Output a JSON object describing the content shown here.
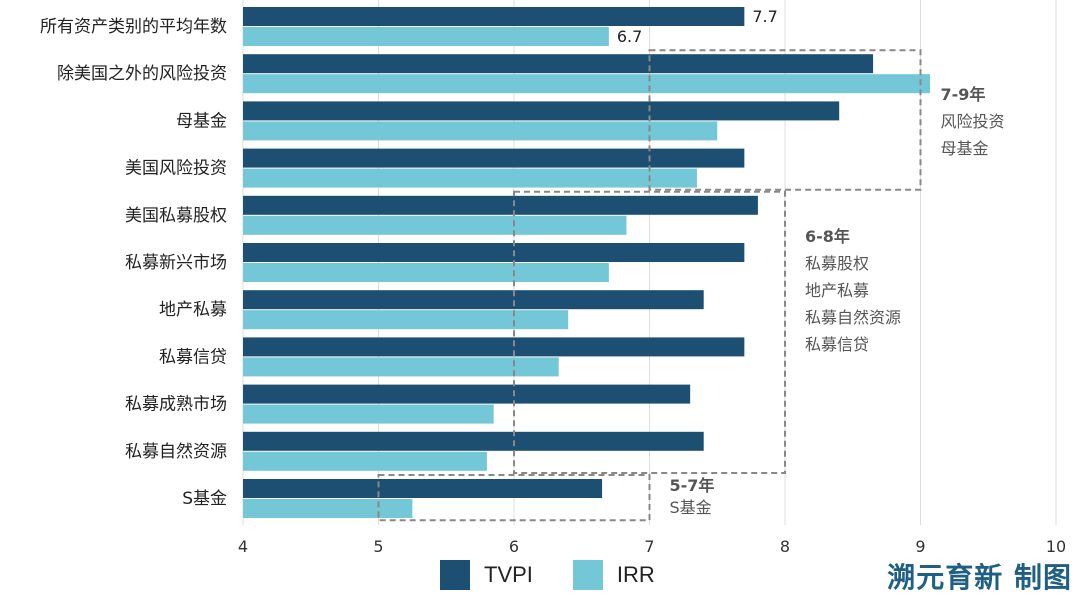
{
  "chart_data": {
    "type": "bar",
    "orientation": "horizontal",
    "categories": [
      "所有资产类别的平均年数",
      "除美国之外的风险投资",
      "母基金",
      "美国风险投资",
      "美国私募股权",
      "私募新兴市场",
      "地产私募",
      "私募信贷",
      "私募成熟市场",
      "私募自然资源",
      "S基金"
    ],
    "series": [
      {
        "name": "TVPI",
        "color": "#1d4f73",
        "values": [
          7.7,
          8.65,
          8.4,
          7.7,
          7.8,
          7.7,
          7.4,
          7.7,
          7.3,
          7.4,
          6.65
        ]
      },
      {
        "name": "IRR",
        "color": "#73c7d6",
        "values": [
          6.7,
          9.07,
          7.5,
          7.35,
          6.83,
          6.7,
          6.4,
          6.33,
          5.85,
          5.8,
          5.25
        ]
      }
    ],
    "data_labels": [
      {
        "category": "所有资产类别的平均年数",
        "series": "TVPI",
        "text": "7.7"
      },
      {
        "category": "所有资产类别的平均年数",
        "series": "IRR",
        "text": "6.7"
      }
    ],
    "xlim": [
      4,
      10
    ],
    "xticks": [
      "4",
      "5",
      "6",
      "7",
      "8",
      "9",
      "10"
    ],
    "grid": "vertical",
    "legend": "bottom",
    "annotations": [
      {
        "x_range": [
          7,
          9
        ],
        "categories": [
          "除美国之外的风险投资",
          "美国风险投资"
        ],
        "title": "7-9年",
        "lines": [
          "风险投资",
          "母基金"
        ]
      },
      {
        "x_range": [
          6,
          8
        ],
        "categories": [
          "美国私募股权",
          "私募自然资源"
        ],
        "title": "6-8年",
        "lines": [
          "私募股权",
          "地产私募",
          "私募自然资源",
          "私募信贷"
        ]
      },
      {
        "x_range": [
          5,
          7
        ],
        "categories": [
          "S基金",
          "S基金"
        ],
        "title": "5-7年",
        "lines": [
          "S基金"
        ]
      }
    ]
  },
  "legend": {
    "tvpi_label": "TVPI",
    "irr_label": "IRR"
  },
  "brand": "溯元育新 制图"
}
